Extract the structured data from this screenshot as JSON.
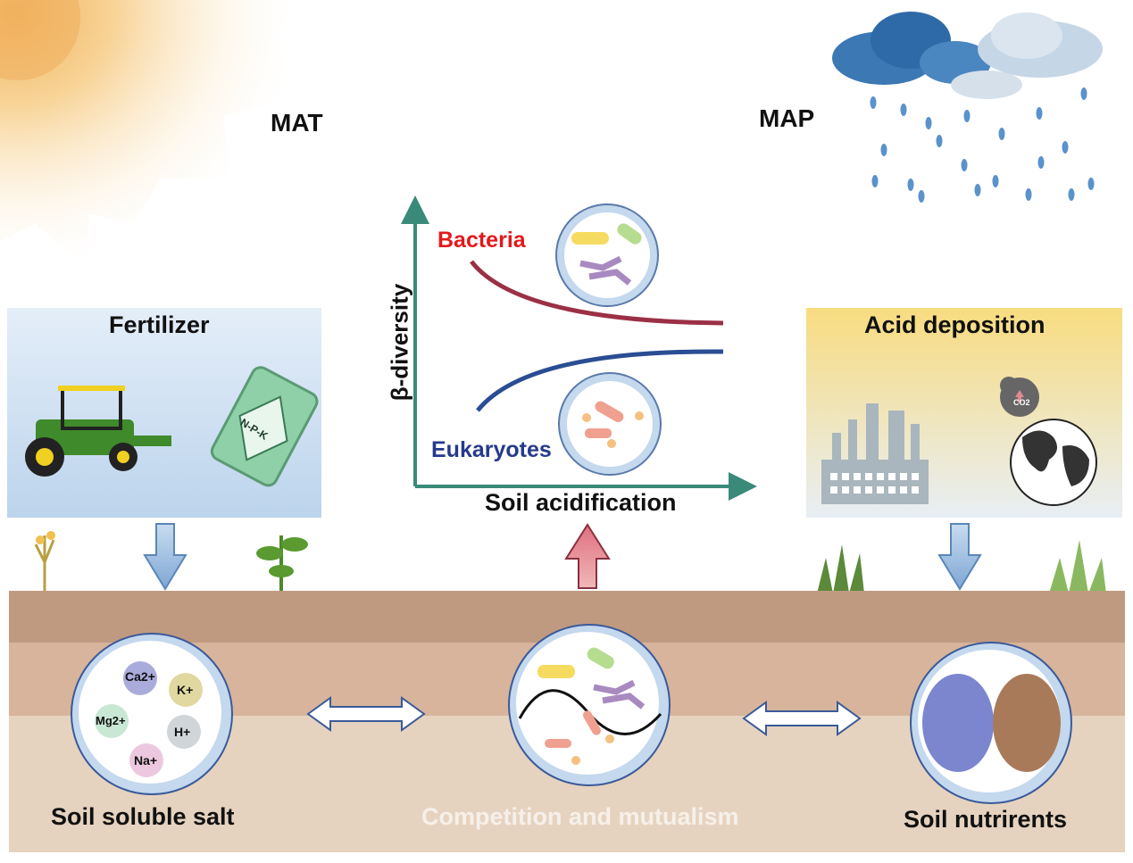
{
  "labels": {
    "mat": "MAT",
    "map": "MAP",
    "fertilizer": "Fertilizer",
    "acid_deposition": "Acid deposition",
    "npk": "N-P-K",
    "co2": "CO2",
    "y_axis": "β-diversity",
    "x_axis": "Soil acidification",
    "bacteria": "Bacteria",
    "eukaryotes": "Eukaryotes",
    "soil_soluble_salt": "Soil soluble salt",
    "competition": "Competition and mutualism",
    "soil_nutrients": "Soil nutrirents"
  },
  "ions": [
    "Ca2+",
    "K+",
    "Mg2+",
    "H+",
    "Na+"
  ],
  "colors": {
    "bacteria": "#e3191c",
    "bacteria_curve": "#9b3045",
    "eukaryotes": "#253a8c",
    "eukaryotes_curve": "#2a4d94",
    "axis": "#3a8a7a",
    "soil_top": "#c09a80",
    "soil_mid": "#d7b49b",
    "soil_bottom": "#e6d3bf"
  }
}
